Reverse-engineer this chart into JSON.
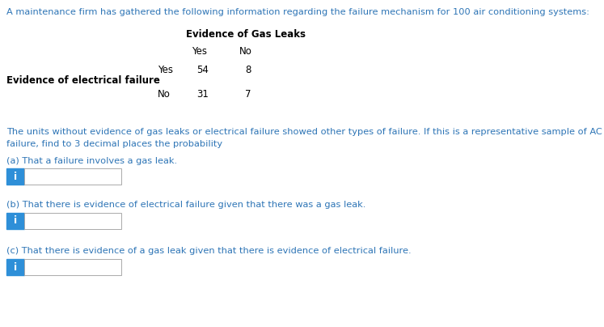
{
  "title_text": "A maintenance firm has gathered the following information regarding the failure mechanism for 100 air conditioning systems:",
  "title_color": "#2E75B6",
  "table_header": "Evidence of Gas Leaks",
  "table_col_labels": [
    "Yes",
    "No"
  ],
  "table_row_label_header": "Evidence of electrical failure",
  "table_row_labels": [
    "Yes",
    "No"
  ],
  "table_values": [
    [
      54,
      8
    ],
    [
      31,
      7
    ]
  ],
  "para_line1": "The units without evidence of gas leaks or electrical failure showed other types of failure. If this is a representative sample of AC",
  "para_line2": "failure, find to 3 decimal places the probability",
  "para_color": "#2E75B6",
  "questions": [
    "(a) That a failure involves a gas leak.",
    "(b) That there is evidence of electrical failure given that there was a gas leak.",
    "(c) That there is evidence of a gas leak given that there is evidence of electrical failure."
  ],
  "question_color": "#2E75B6",
  "input_box_color": "#FFFFFF",
  "input_button_color": "#2E8FD8",
  "input_button_text": "i",
  "input_button_text_color": "#FFFFFF",
  "bg_color": "#FFFFFF",
  "table_text_color": "#000000",
  "table_header_color": "#000000",
  "table_row_label_color": "#000000",
  "font_size_title": 8.2,
  "font_size_table": 8.5,
  "font_size_para": 8.2,
  "font_size_question": 8.2
}
